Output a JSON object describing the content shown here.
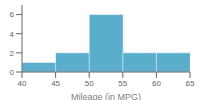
{
  "chart_data": {
    "type": "histogram",
    "bins": [
      40,
      45,
      50,
      55,
      60,
      65
    ],
    "values": [
      1,
      2,
      6,
      2,
      2
    ],
    "color": "#5aaecc",
    "xlabel": "Mileage (in MPG)",
    "xlim": [
      40,
      65
    ],
    "ylim": [
      0,
      7
    ],
    "xticks": [
      40,
      45,
      50,
      55,
      60,
      65
    ],
    "yticks": [
      0,
      2,
      4,
      6
    ]
  }
}
